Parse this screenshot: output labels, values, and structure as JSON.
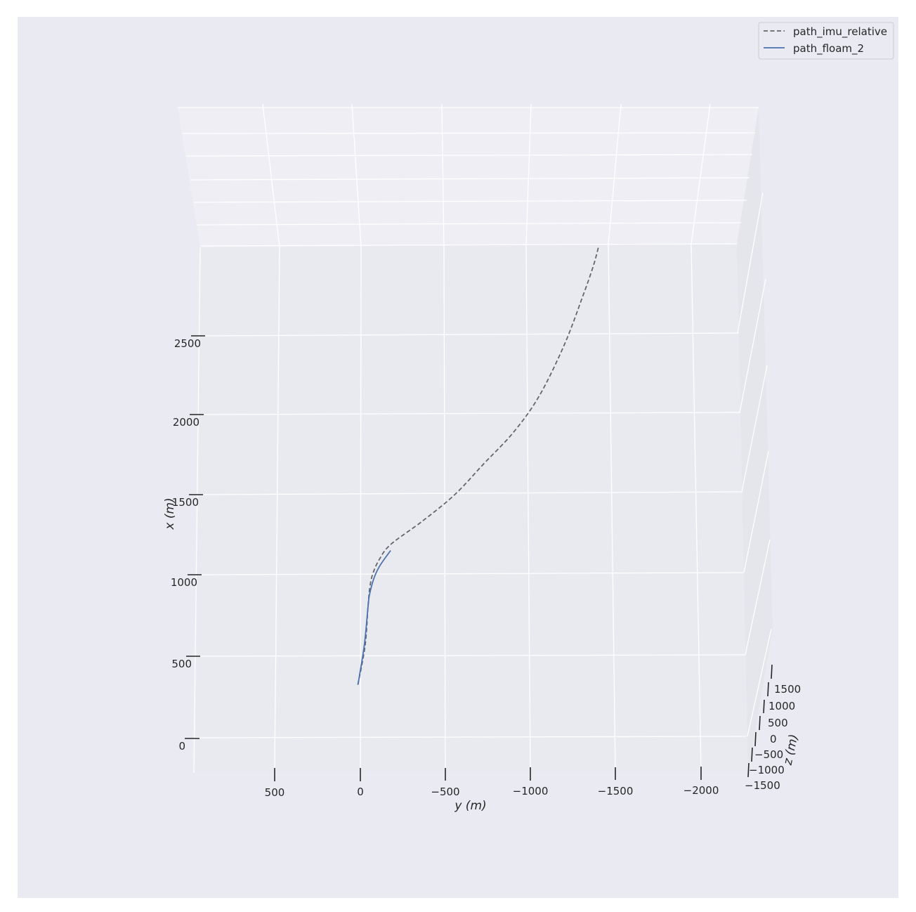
{
  "chart_data": {
    "type": "line",
    "projection": "3d",
    "xlabel": "y (m)",
    "ylabel": "x (m)",
    "zlabel": "z (m)",
    "y_axis_ticks": [
      500,
      0,
      -500,
      -1000,
      -1500,
      -2000
    ],
    "y_axis_tick_labels": [
      "500",
      "0",
      "−500",
      "−1000",
      "−1500",
      "−2000"
    ],
    "x_axis_ticks": [
      0,
      500,
      1000,
      1500,
      2000,
      2500
    ],
    "x_axis_tick_labels": [
      "0",
      "500",
      "1000",
      "1500",
      "2000",
      "2500"
    ],
    "z_axis_ticks": [
      1500,
      1000,
      500,
      0,
      -500,
      -1000,
      -1500
    ],
    "z_axis_tick_labels": [
      "1500",
      "1000",
      "500",
      "0",
      "−500",
      "−1000",
      "−1500"
    ],
    "grid": true,
    "legend_position": "top-right",
    "background": "#eaeaf2",
    "series": [
      {
        "name": "path_imu_relative",
        "color": "#666666",
        "style": "dashed",
        "points": [
          {
            "y": 30,
            "x": 320
          },
          {
            "y": 0,
            "x": 560
          },
          {
            "y": -5,
            "x": 800
          },
          {
            "y": -10,
            "x": 930
          },
          {
            "y": -25,
            "x": 1020
          },
          {
            "y": -60,
            "x": 1110
          },
          {
            "y": -120,
            "x": 1200
          },
          {
            "y": -300,
            "x": 1350
          },
          {
            "y": -480,
            "x": 1520
          },
          {
            "y": -640,
            "x": 1720
          },
          {
            "y": -800,
            "x": 1920
          },
          {
            "y": -940,
            "x": 2160
          },
          {
            "y": -1070,
            "x": 2500
          },
          {
            "y": -1160,
            "x": 2820
          },
          {
            "y": -1215,
            "x": 3040
          },
          {
            "y": -1240,
            "x": 3180
          }
        ]
      },
      {
        "name": "path_floam_2",
        "color": "#4c72b0",
        "style": "solid",
        "points": [
          {
            "y": 30,
            "x": 320
          },
          {
            "y": 5,
            "x": 560
          },
          {
            "y": -5,
            "x": 800
          },
          {
            "y": -10,
            "x": 880
          },
          {
            "y": -30,
            "x": 980
          },
          {
            "y": -60,
            "x": 1060
          },
          {
            "y": -120,
            "x": 1160
          }
        ]
      }
    ]
  }
}
